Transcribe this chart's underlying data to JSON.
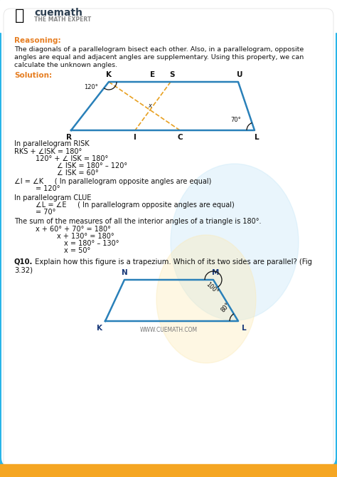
{
  "bg_color": "#ffffff",
  "header_bg": "#29b5e8",
  "footer_bg": "#f5a623",
  "card_bg": "#ffffff",
  "title_text": "cuemath",
  "subtitle_text": "THE MATH EXPERT",
  "reasoning_label": "Reasoning:",
  "reasoning_text": "The diagonals of a parallelogram bisect each other. Also, in a parallelogram, opposite\nangles are equal and adjacent angles are supplementary. Using this property, we can\ncalculate the unknown angles.",
  "solution_label": "Solution:",
  "para1_label": "In parallelogram RISK",
  "para1_lines": [
    "RKS + ∠ISK = 180°",
    "120° + ∠ ISK = 180°",
    "∠ ISK = 180° – 120°",
    "∠ ISK = 60°"
  ],
  "para1_indents": [
    0,
    1,
    2,
    2
  ],
  "para2_lines": [
    "∠I = ∠K     ( In parallelogram opposite angles are equal)",
    "= 120°"
  ],
  "para2_indents": [
    0,
    1
  ],
  "para3_label": "In parallelogram CLUE",
  "para3_lines": [
    "∠L = ∠E     ( In parallelogram opposite angles are equal)",
    "= 70°"
  ],
  "para3_indents": [
    0,
    1
  ],
  "para4_text": "The sum of the measures of all the interior angles of a triangle is 180°.",
  "para4_lines": [
    "x + 60° + 70° = 180°",
    "x + 130° = 180°",
    "x = 180° – 130°",
    "x = 50°"
  ],
  "para4_indents": [
    0,
    1,
    2,
    2
  ],
  "q10_bold": "Q10.",
  "q10_rest": " Explain how this figure is a trapezium. Which of its two sides are parallel? (Fig",
  "q10_line2": "3.32)",
  "watermark": "WWW.CUEMATH.COM",
  "text_color": "#111111",
  "orange_color": "#e67e22",
  "blue_color": "#2471a3",
  "fig_line_color": "#2980b9",
  "diag_color": "#e8a020",
  "angle_label_120": "120°",
  "angle_label_70": "70°",
  "angle_label_100": "100°",
  "angle_label_80": "80°",
  "trap_label_color": "#1a3a7a"
}
